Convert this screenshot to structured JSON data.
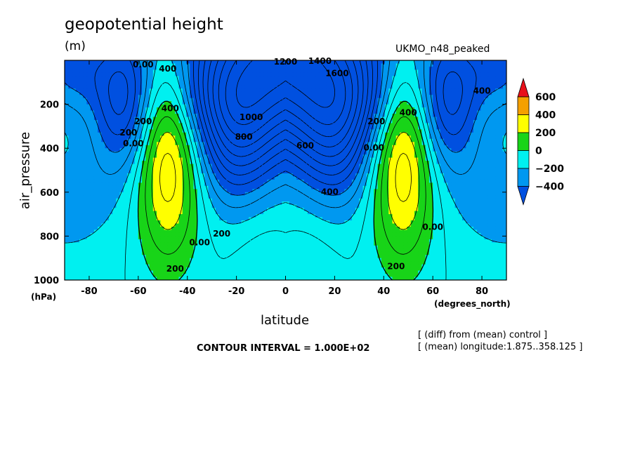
{
  "chart_data": {
    "type": "contour",
    "title": "geopotential height",
    "units": "(m)",
    "run_name": "UKMO_n48_peaked",
    "xlabel": "latitude",
    "x_unit": "(degrees_north)",
    "ylabel": "air_pressure",
    "y_unit": "(hPa)",
    "xlim": [
      -90,
      90
    ],
    "ylim": [
      1000,
      0
    ],
    "x_ticks": [
      -80,
      -60,
      -40,
      -20,
      0,
      20,
      40,
      60,
      80
    ],
    "y_ticks": [
      200,
      400,
      600,
      800,
      1000
    ],
    "contour_interval_text": "CONTOUR INTERVAL = 1.000E+02",
    "notes": [
      "[ (diff) from (mean) control ]",
      "[ (mean) longitude:1.875..358.125 ]"
    ],
    "colorbar": {
      "levels": [
        "600",
        "400",
        "200",
        "0",
        "−200",
        "−400"
      ],
      "colors": [
        "#e8101a",
        "#f5a000",
        "#ffff00",
        "#18d418",
        "#00f0f0",
        "#0098f0",
        "#0050e0"
      ]
    },
    "field_colors": {
      "le_-400": "#0050e0",
      "-400_-200": "#0098f0",
      "-200_0": "#00f0f0",
      "0_200": "#18d418",
      "200_400": "#ffff00",
      "400_600": "#f5a000"
    },
    "contour_labels": [
      {
        "text": "1200",
        "x": 0,
        "y": 8
      },
      {
        "text": "1400",
        "x": 14,
        "y": 5
      },
      {
        "text": "1600",
        "x": 21,
        "y": 60
      },
      {
        "text": "1000",
        "x": -14,
        "y": 260
      },
      {
        "text": "800",
        "x": -17,
        "y": 350
      },
      {
        "text": "600",
        "x": 8,
        "y": 390
      },
      {
        "text": "400",
        "x": 18,
        "y": 600
      },
      {
        "text": "400",
        "x": -48,
        "y": 40
      },
      {
        "text": "400",
        "x": -47,
        "y": 220
      },
      {
        "text": "400",
        "x": 50,
        "y": 240
      },
      {
        "text": "400",
        "x": 80,
        "y": 140
      },
      {
        "text": "200",
        "x": -64,
        "y": 330
      },
      {
        "text": "200",
        "x": -58,
        "y": 280
      },
      {
        "text": "200",
        "x": -26,
        "y": 790
      },
      {
        "text": "200",
        "x": -45,
        "y": 950
      },
      {
        "text": "200",
        "x": 45,
        "y": 940
      },
      {
        "text": "200",
        "x": 37,
        "y": 280
      },
      {
        "text": "0.00",
        "x": -62,
        "y": 380
      },
      {
        "text": "0.00",
        "x": -35,
        "y": 830
      },
      {
        "text": "0.00",
        "x": 36,
        "y": 400
      },
      {
        "text": "0.00",
        "x": 60,
        "y": 760
      },
      {
        "text": "0.00",
        "x": -58,
        "y": 20
      }
    ]
  }
}
